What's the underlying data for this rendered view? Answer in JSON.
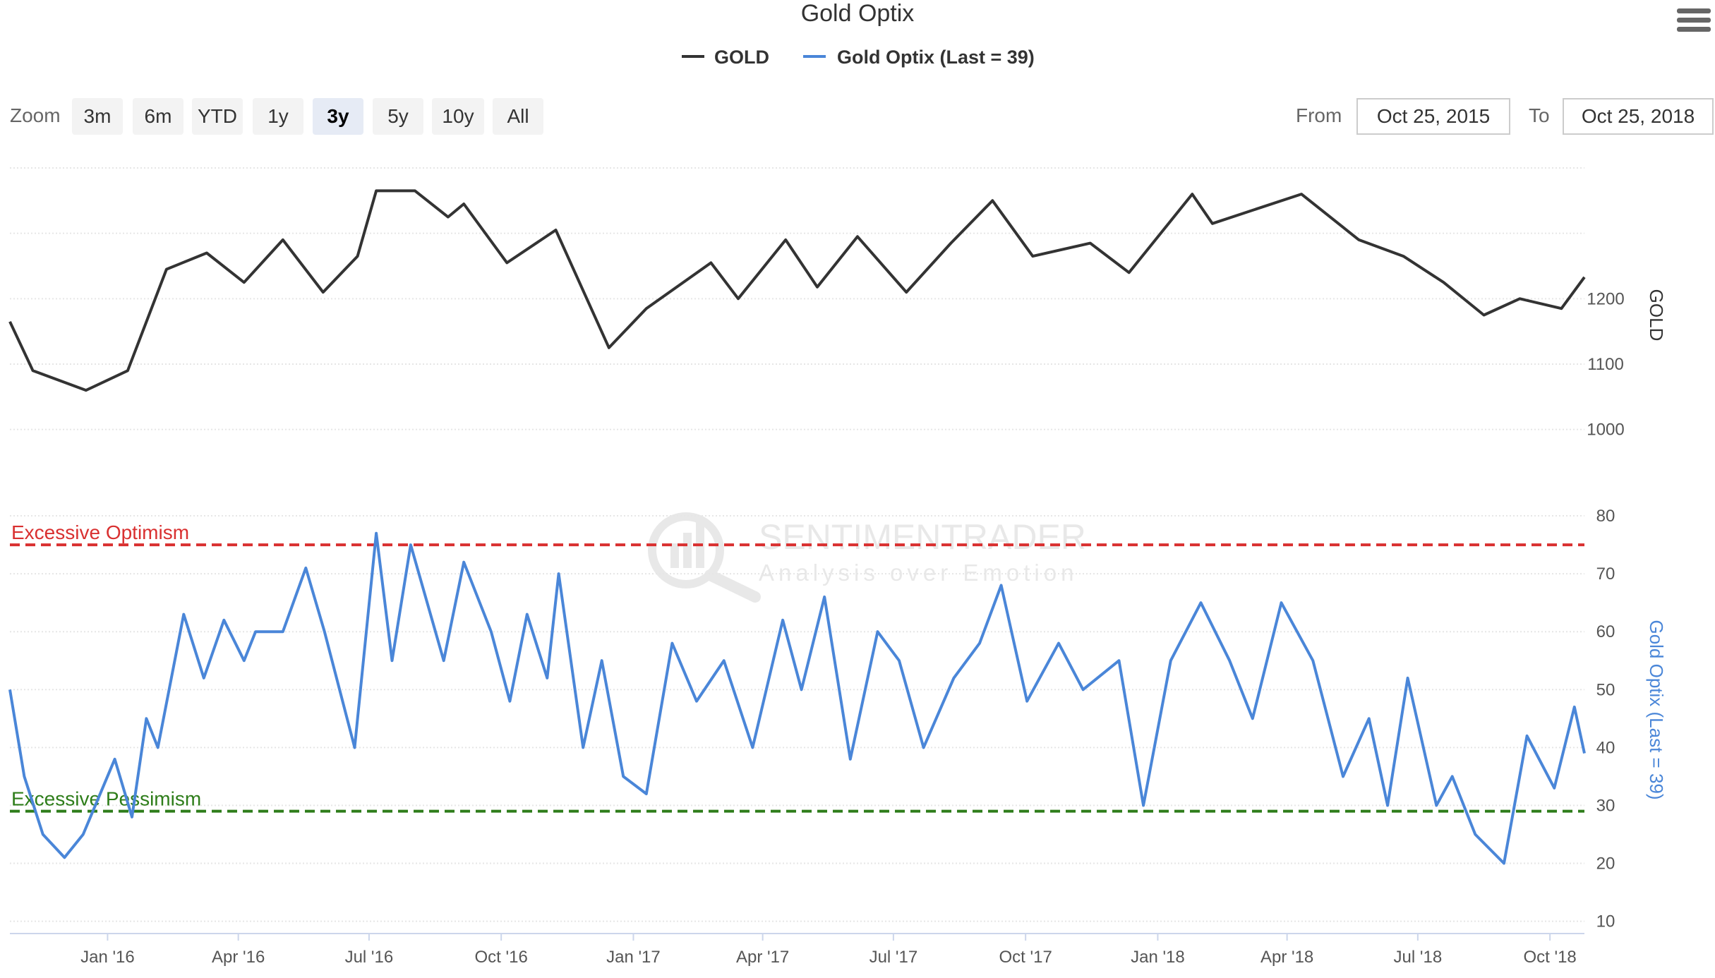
{
  "title": "Gold Optix",
  "legend": [
    {
      "label": "GOLD",
      "color": "#333333"
    },
    {
      "label": "Gold Optix (Last = 39)",
      "color": "#4a86d8"
    }
  ],
  "range_selector": {
    "zoom_label": "Zoom",
    "buttons": [
      "3m",
      "6m",
      "YTD",
      "1y",
      "3y",
      "5y",
      "10y",
      "All"
    ],
    "selected": "3y"
  },
  "date_range": {
    "from_label": "From",
    "from_value": "Oct 25, 2015",
    "to_label": "To",
    "to_value": "Oct 25, 2018"
  },
  "watermark": {
    "line1": "SENTIMENTRADER",
    "line2": "Analysis over Emotion"
  },
  "chart_data": {
    "type": "line",
    "x_tick_labels": [
      "Jan '16",
      "Apr '16",
      "Jul '16",
      "Oct '16",
      "Jan '17",
      "Apr '17",
      "Jul '17",
      "Oct '17",
      "Jan '18",
      "Apr '18",
      "Jul '18",
      "Oct '18"
    ],
    "x_tick_values": [
      "2016-01-01",
      "2016-04-01",
      "2016-07-01",
      "2016-10-01",
      "2017-01-01",
      "2017-04-01",
      "2017-07-01",
      "2017-10-01",
      "2018-01-01",
      "2018-04-01",
      "2018-07-01",
      "2018-10-01"
    ],
    "xlim": [
      "2015-10-25",
      "2018-10-25"
    ],
    "panels": [
      {
        "name": "GOLD",
        "ylabel": "GOLD",
        "ylim": [
          950,
          1400
        ],
        "yticks": [
          1000,
          1100,
          1200
        ],
        "color": "#333333",
        "series": {
          "name": "GOLD",
          "points": [
            [
              "2015-10-25",
              1165
            ],
            [
              "2015-11-10",
              1090
            ],
            [
              "2015-12-17",
              1060
            ],
            [
              "2016-01-15",
              1090
            ],
            [
              "2016-02-11",
              1245
            ],
            [
              "2016-03-10",
              1270
            ],
            [
              "2016-04-05",
              1225
            ],
            [
              "2016-05-02",
              1290
            ],
            [
              "2016-05-30",
              1210
            ],
            [
              "2016-06-23",
              1265
            ],
            [
              "2016-07-06",
              1365
            ],
            [
              "2016-08-02",
              1365
            ],
            [
              "2016-08-25",
              1325
            ],
            [
              "2016-09-05",
              1345
            ],
            [
              "2016-10-05",
              1255
            ],
            [
              "2016-11-08",
              1305
            ],
            [
              "2016-12-15",
              1125
            ],
            [
              "2017-01-10",
              1185
            ],
            [
              "2017-02-24",
              1255
            ],
            [
              "2017-03-15",
              1200
            ],
            [
              "2017-04-17",
              1290
            ],
            [
              "2017-05-09",
              1218
            ],
            [
              "2017-06-06",
              1295
            ],
            [
              "2017-07-10",
              1210
            ],
            [
              "2017-08-10",
              1285
            ],
            [
              "2017-09-08",
              1350
            ],
            [
              "2017-10-06",
              1265
            ],
            [
              "2017-11-15",
              1285
            ],
            [
              "2017-12-12",
              1240
            ],
            [
              "2018-01-25",
              1360
            ],
            [
              "2018-02-08",
              1315
            ],
            [
              "2018-04-11",
              1360
            ],
            [
              "2018-05-21",
              1290
            ],
            [
              "2018-06-21",
              1265
            ],
            [
              "2018-07-19",
              1225
            ],
            [
              "2018-08-16",
              1175
            ],
            [
              "2018-09-10",
              1200
            ],
            [
              "2018-10-09",
              1185
            ],
            [
              "2018-10-25",
              1233
            ]
          ]
        }
      },
      {
        "name": "Gold Optix",
        "ylabel": "Gold Optix (Last = 39)",
        "ylim": [
          8,
          85
        ],
        "yticks": [
          10,
          20,
          30,
          40,
          50,
          60,
          70,
          80
        ],
        "color": "#4a86d8",
        "reference_lines": [
          {
            "label": "Excessive Optimism",
            "value": 75,
            "color": "#d93030"
          },
          {
            "label": "Excessive Pessimism",
            "value": 29,
            "color": "#2e7d1a"
          }
        ],
        "series": {
          "name": "Gold Optix (Last = 39)",
          "points": [
            [
              "2015-10-25",
              50
            ],
            [
              "2015-11-04",
              35
            ],
            [
              "2015-11-17",
              25
            ],
            [
              "2015-12-02",
              21
            ],
            [
              "2015-12-15",
              25
            ],
            [
              "2016-01-06",
              38
            ],
            [
              "2016-01-18",
              28
            ],
            [
              "2016-01-28",
              45
            ],
            [
              "2016-02-05",
              40
            ],
            [
              "2016-02-23",
              63
            ],
            [
              "2016-03-08",
              52
            ],
            [
              "2016-03-22",
              62
            ],
            [
              "2016-04-05",
              55
            ],
            [
              "2016-04-13",
              60
            ],
            [
              "2016-05-02",
              60
            ],
            [
              "2016-05-18",
              71
            ],
            [
              "2016-05-31",
              60
            ],
            [
              "2016-06-21",
              40
            ],
            [
              "2016-07-06",
              77
            ],
            [
              "2016-07-17",
              55
            ],
            [
              "2016-07-30",
              75
            ],
            [
              "2016-08-22",
              55
            ],
            [
              "2016-09-05",
              72
            ],
            [
              "2016-09-24",
              60
            ],
            [
              "2016-10-07",
              48
            ],
            [
              "2016-10-19",
              63
            ],
            [
              "2016-11-02",
              52
            ],
            [
              "2016-11-10",
              70
            ],
            [
              "2016-11-27",
              40
            ],
            [
              "2016-12-10",
              55
            ],
            [
              "2016-12-25",
              35
            ],
            [
              "2017-01-10",
              32
            ],
            [
              "2017-01-28",
              58
            ],
            [
              "2017-02-14",
              48
            ],
            [
              "2017-03-05",
              55
            ],
            [
              "2017-03-25",
              40
            ],
            [
              "2017-04-15",
              62
            ],
            [
              "2017-04-28",
              50
            ],
            [
              "2017-05-14",
              66
            ],
            [
              "2017-06-01",
              38
            ],
            [
              "2017-06-20",
              60
            ],
            [
              "2017-07-05",
              55
            ],
            [
              "2017-07-22",
              40
            ],
            [
              "2017-08-12",
              52
            ],
            [
              "2017-08-30",
              58
            ],
            [
              "2017-09-14",
              68
            ],
            [
              "2017-10-02",
              48
            ],
            [
              "2017-10-24",
              58
            ],
            [
              "2017-11-10",
              50
            ],
            [
              "2017-12-05",
              55
            ],
            [
              "2017-12-22",
              30
            ],
            [
              "2018-01-10",
              55
            ],
            [
              "2018-01-31",
              65
            ],
            [
              "2018-02-20",
              55
            ],
            [
              "2018-03-08",
              45
            ],
            [
              "2018-03-28",
              65
            ],
            [
              "2018-04-19",
              55
            ],
            [
              "2018-05-10",
              35
            ],
            [
              "2018-05-28",
              45
            ],
            [
              "2018-06-10",
              30
            ],
            [
              "2018-06-24",
              52
            ],
            [
              "2018-07-14",
              30
            ],
            [
              "2018-07-25",
              35
            ],
            [
              "2018-08-10",
              25
            ],
            [
              "2018-08-30",
              20
            ],
            [
              "2018-09-15",
              42
            ],
            [
              "2018-10-04",
              33
            ],
            [
              "2018-10-18",
              47
            ],
            [
              "2018-10-25",
              39
            ]
          ]
        }
      }
    ]
  }
}
